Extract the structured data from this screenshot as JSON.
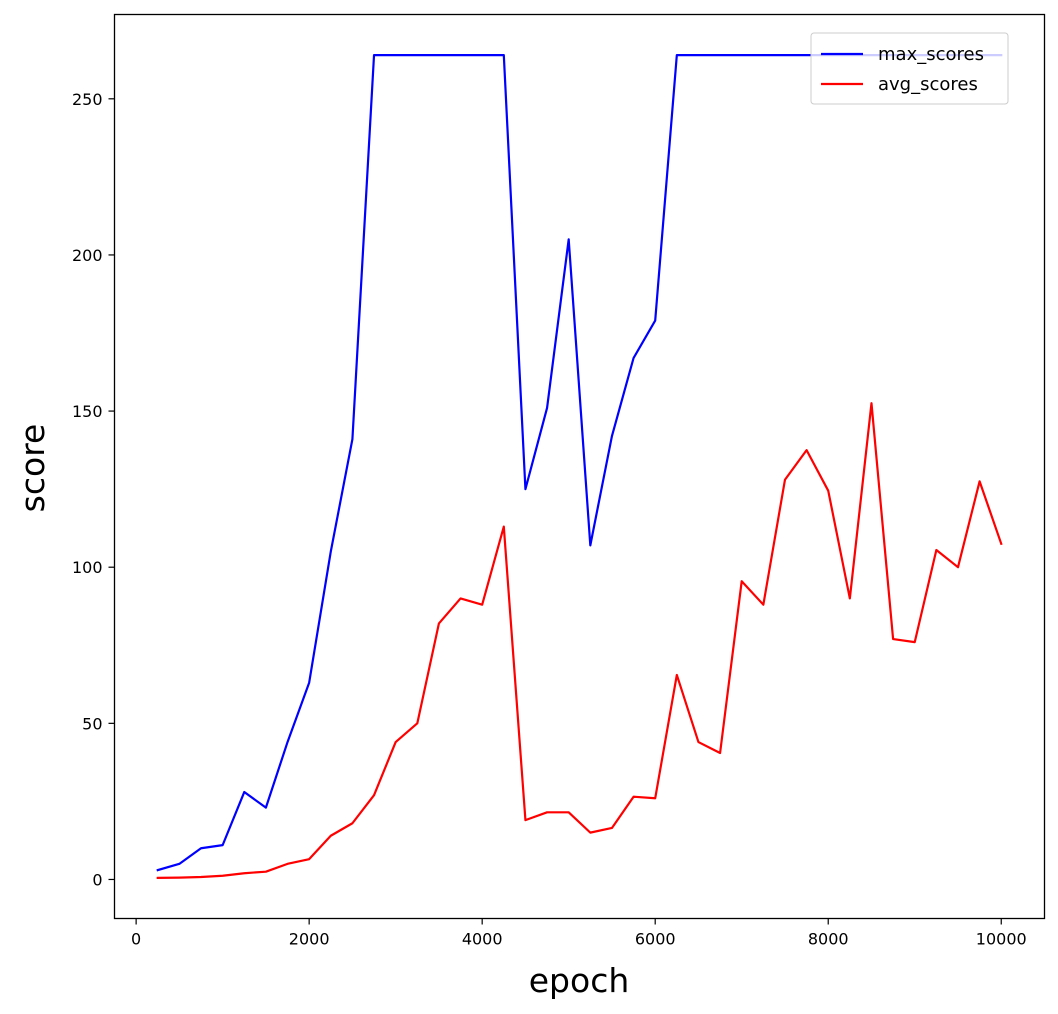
{
  "chart_data": {
    "type": "line",
    "title": "",
    "xlabel": "epoch",
    "ylabel": "score",
    "xlim": [
      -250,
      10500
    ],
    "ylim": [
      -12.5,
      277
    ],
    "xticks": [
      0,
      2000,
      4000,
      6000,
      8000,
      10000
    ],
    "yticks": [
      0,
      50,
      100,
      150,
      200,
      250
    ],
    "grid": false,
    "legend_position": "top-right",
    "x": [
      250,
      500,
      750,
      1000,
      1250,
      1500,
      1750,
      2000,
      2250,
      2500,
      2750,
      3000,
      3250,
      3500,
      3750,
      4000,
      4250,
      4500,
      4750,
      5000,
      5250,
      5500,
      5750,
      6000,
      6250,
      6500,
      6750,
      7000,
      7250,
      7500,
      7750,
      8000,
      8250,
      8500,
      8750,
      9000,
      9250,
      9500,
      9750,
      10000
    ],
    "series": [
      {
        "name": "max_scores",
        "color": "#0000ff",
        "values": [
          3,
          5,
          10,
          11,
          28,
          23,
          44,
          63,
          105,
          141,
          264,
          264,
          264,
          264,
          264,
          264,
          264,
          125,
          151,
          205,
          107,
          142,
          167,
          179,
          264,
          264,
          264,
          264,
          264,
          264,
          264,
          264,
          264,
          264,
          264,
          264,
          264,
          264,
          264,
          264
        ]
      },
      {
        "name": "avg_scores",
        "color": "#ff0000",
        "values": [
          0.5,
          0.6,
          0.8,
          1.2,
          2,
          2.5,
          5,
          6.5,
          14,
          18,
          27,
          44,
          50,
          82,
          90,
          88,
          113,
          19,
          21.5,
          21.5,
          15,
          16.5,
          26.5,
          26,
          65.5,
          44,
          40.5,
          95.5,
          88,
          128,
          137.5,
          124.5,
          90,
          152.5,
          77,
          76,
          105.5,
          100,
          127.5,
          107.5
        ]
      }
    ]
  }
}
